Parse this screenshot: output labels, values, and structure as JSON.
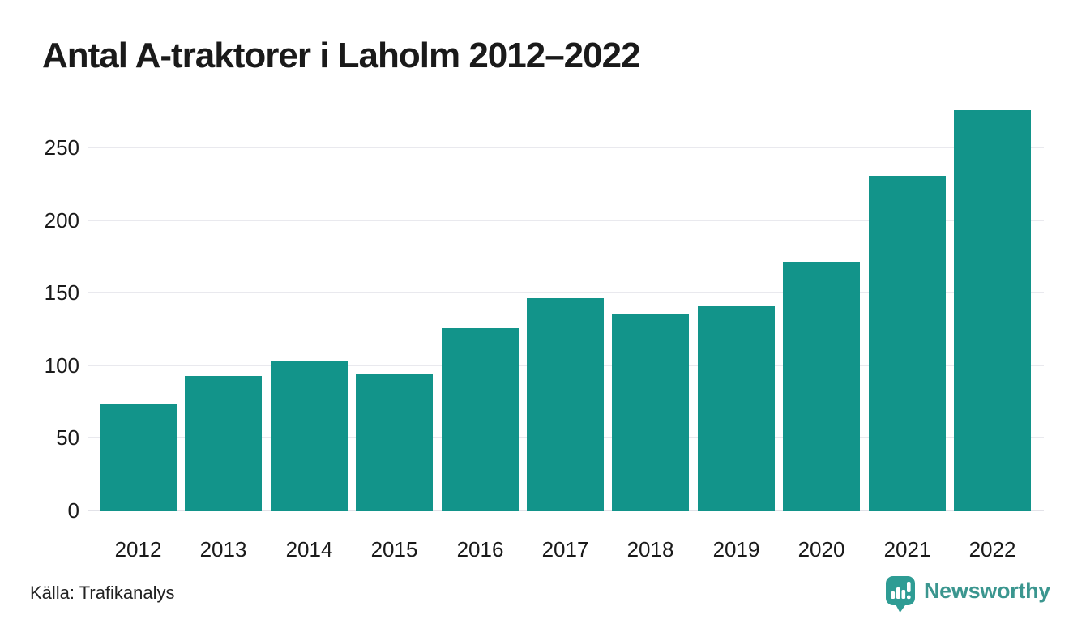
{
  "title": "Antal A-traktorer i Laholm 2012–2022",
  "chart_data": {
    "type": "bar",
    "title": "Antal A-traktorer i Laholm 2012–2022",
    "categories": [
      "2012",
      "2013",
      "2014",
      "2015",
      "2016",
      "2017",
      "2018",
      "2019",
      "2020",
      "2021",
      "2022"
    ],
    "values": [
      74,
      93,
      104,
      95,
      126,
      147,
      136,
      141,
      172,
      231,
      276
    ],
    "xlabel": "",
    "ylabel": "",
    "ylim": [
      0,
      280
    ],
    "yticks": [
      0,
      50,
      100,
      150,
      200,
      250
    ],
    "grid": true,
    "legend": "none",
    "bar_color": "#12948A"
  },
  "footer": {
    "source": "Källa: Trafikanalys",
    "brand": "Newsworthy"
  },
  "icons": {
    "brand_icon": "newsworthy-bubble-barchart-icon"
  },
  "colors": {
    "bar": "#12948A",
    "gridline": "#E9E9EE",
    "baseline": "#E2E2E8",
    "title_text": "#1A1A1A",
    "tick_text": "#1A1A1A",
    "source_text": "#222222",
    "brand_text": "#3B968F",
    "brand_icon": "#2E9C94",
    "background": "#FFFFFF"
  }
}
